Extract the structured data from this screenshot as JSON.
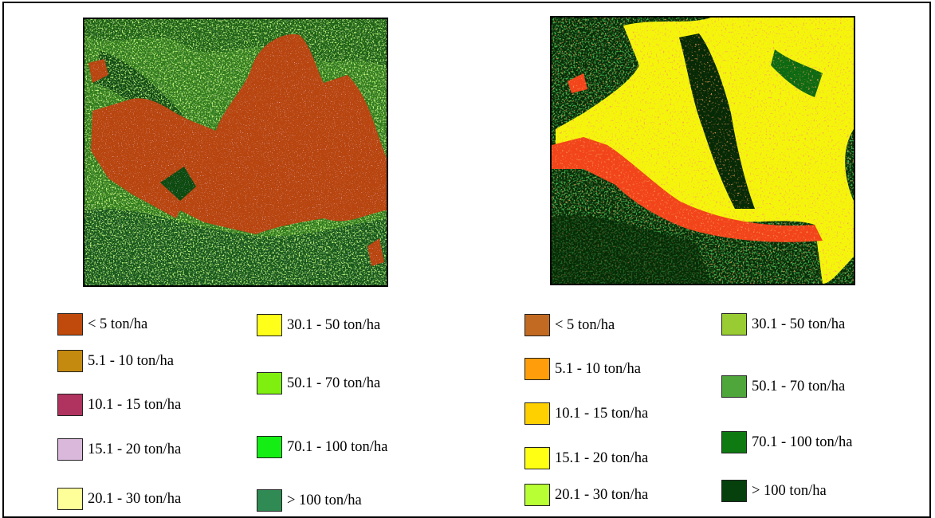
{
  "maps": [
    {
      "name": "left-biomass-map",
      "palette": {
        "forest_dense": "#0e4d12",
        "forest_mid": "#2f7a1c",
        "green": "#6fdc2a",
        "yellow": "#f3f53a",
        "brown": "#b8450f",
        "pink": "#c9a5c8"
      },
      "legend": [
        {
          "label": "< 5 ton/ha",
          "color": "#c04a0c"
        },
        {
          "label": "5.1 - 10 ton/ha",
          "color": "#c48a10"
        },
        {
          "label": "10.1 - 15 ton/ha",
          "color": "#b0335f"
        },
        {
          "label": "15.1 - 20 ton/ha",
          "color": "#d9b8dc"
        },
        {
          "label": "20.1 - 30 ton/ha",
          "color": "#ffff99"
        },
        {
          "label": "30.1 - 50 ton/ha",
          "color": "#ffff1a"
        },
        {
          "label": "50.1 - 70 ton/ha",
          "color": "#7fef10"
        },
        {
          "label": "70.1 - 100 ton/ha",
          "color": "#14ee14"
        },
        {
          "label": "> 100 ton/ha",
          "color": "#2f8a53"
        }
      ]
    },
    {
      "name": "right-biomass-map",
      "palette": {
        "forest_dense": "#062a06",
        "forest_mid": "#0e6a12",
        "green": "#59c91f",
        "yellow": "#f5f50c",
        "orange": "#f78a14",
        "red": "#f2441a"
      },
      "legend": [
        {
          "label": "< 5 ton/ha",
          "color": "#c26a22"
        },
        {
          "label": "5.1 - 10 ton/ha",
          "color": "#ff9d0a"
        },
        {
          "label": "10.1 - 15 ton/ha",
          "color": "#ffd000"
        },
        {
          "label": "15.1 - 20 ton/ha",
          "color": "#ffff14"
        },
        {
          "label": "20.1 - 30 ton/ha",
          "color": "#b8ff33"
        },
        {
          "label": "30.1 - 50 ton/ha",
          "color": "#99cc33"
        },
        {
          "label": "50.1 - 70 ton/ha",
          "color": "#4fa73b"
        },
        {
          "label": "70.1 - 100 ton/ha",
          "color": "#0f7a12"
        },
        {
          "label": "> 100 ton/ha",
          "color": "#06400d"
        }
      ]
    }
  ]
}
